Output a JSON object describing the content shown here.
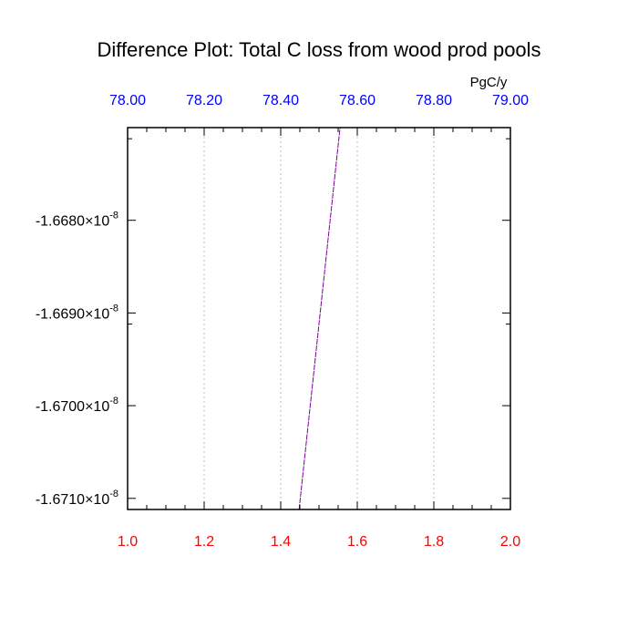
{
  "chart_data": {
    "type": "line",
    "title": "Difference Plot: Total C loss from wood prod pools",
    "units_label": "PgC/y",
    "x_bottom": {
      "range": [
        1.0,
        2.0
      ],
      "ticks": [
        "1.0",
        "1.2",
        "1.4",
        "1.6",
        "1.8",
        "2.0"
      ],
      "color": "#ff0000"
    },
    "x_top": {
      "range": [
        78.0,
        79.0
      ],
      "ticks": [
        "78.00",
        "78.20",
        "78.40",
        "78.60",
        "78.80",
        "79.00"
      ],
      "color": "#0000ff"
    },
    "y": {
      "range": [
        -1.67112e-08,
        -1.667e-08
      ],
      "ticks": [
        {
          "mantissa": "-1.6680",
          "exp": "-8",
          "value": -1.668e-08
        },
        {
          "mantissa": "-1.6690",
          "exp": "-8",
          "value": -1.669e-08
        },
        {
          "mantissa": "-1.6700",
          "exp": "-8",
          "value": -1.67e-08
        },
        {
          "mantissa": "-1.6710",
          "exp": "-8",
          "value": -1.671e-08
        }
      ]
    },
    "grid": "vertical dotted",
    "series": [
      {
        "color": "#7b0099",
        "points": [
          {
            "x": 1.448,
            "y": -1.67112e-08
          },
          {
            "x": 1.555,
            "y": -1.667e-08
          }
        ]
      }
    ]
  }
}
